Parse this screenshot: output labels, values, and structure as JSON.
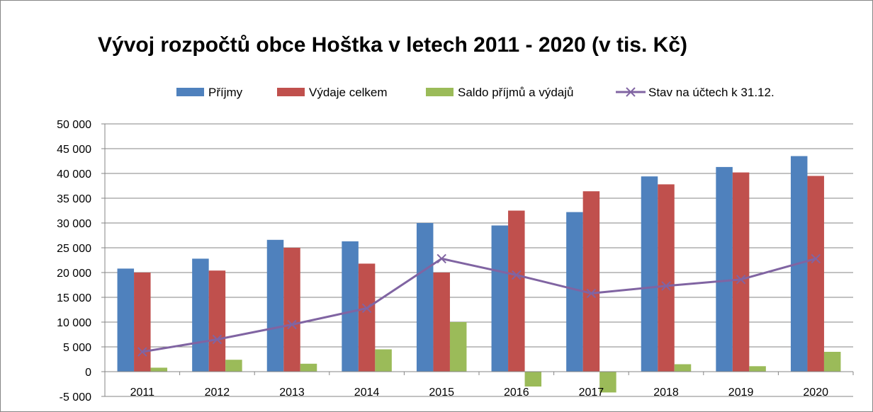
{
  "chart_data": {
    "type": "bar",
    "title": "Vývoj rozpočtů obce Hoštka v letech 2011 - 2020 (v tis. Kč)",
    "xlabel": "",
    "ylabel": "",
    "categories": [
      "2011",
      "2012",
      "2013",
      "2014",
      "2015",
      "2016",
      "2017",
      "2018",
      "2019",
      "2020"
    ],
    "series": [
      {
        "name": "Příjmy",
        "type": "bar",
        "color": "#4F81BD",
        "values": [
          20800,
          22800,
          26600,
          26300,
          30000,
          29500,
          32200,
          39400,
          41300,
          43500
        ]
      },
      {
        "name": "Výdaje celkem",
        "type": "bar",
        "color": "#C0504D",
        "values": [
          20000,
          20400,
          25000,
          21800,
          20000,
          32500,
          36400,
          37800,
          40200,
          39500
        ]
      },
      {
        "name": "Saldo příjmů a výdajů",
        "type": "bar",
        "color": "#9BBB59",
        "values": [
          800,
          2400,
          1600,
          4500,
          10000,
          -3000,
          -4200,
          1500,
          1100,
          4000
        ]
      },
      {
        "name": "Stav na účtech k 31.12.",
        "type": "line",
        "color": "#8064A2",
        "marker": "x",
        "values": [
          4000,
          6500,
          9500,
          12800,
          22800,
          19500,
          15800,
          17300,
          18600,
          22800
        ]
      }
    ],
    "ylim": [
      -5000,
      50000
    ],
    "yticks": [
      -5000,
      0,
      5000,
      10000,
      15000,
      20000,
      25000,
      30000,
      35000,
      40000,
      45000,
      50000
    ],
    "ytick_labels": [
      "-5 000",
      "0",
      "5 000",
      "10 000",
      "15 000",
      "20 000",
      "25 000",
      "30 000",
      "35 000",
      "40 000",
      "45 000",
      "50 000"
    ],
    "grid": true,
    "legend_position": "top"
  }
}
